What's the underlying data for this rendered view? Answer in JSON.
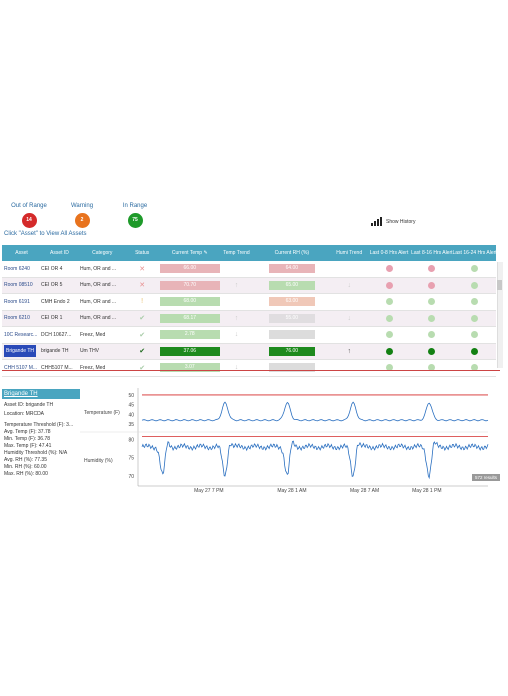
{
  "summary": {
    "out_of_range": {
      "label": "Out of Range",
      "count": "14",
      "color": "#d42a2a"
    },
    "warning": {
      "label": "Warning",
      "count": "2",
      "color": "#e8731e"
    },
    "in_range": {
      "label": "In Range",
      "count": "75",
      "color": "#1e9a2a"
    }
  },
  "hint": "Click \"Asset\" to View All Assets",
  "show_history": "Show History",
  "columns": [
    "Asset",
    "Asset ID",
    "Category",
    "Status",
    "Current Temp",
    "Temp Trend",
    "Current RH (%)",
    "Humi Trend",
    "Last 0-8 Hrs Alert",
    "Last 8-16 Hrs Alert",
    "Last 16-24 Hrs Alert"
  ],
  "rows": [
    {
      "asset": "Room 6240",
      "id": "CEI OR 4",
      "category": "Hum, OR and ...",
      "status": "x",
      "temp": "66.00",
      "temp_color": "#e8b4b8",
      "temp_trend": "",
      "rh": "64.00",
      "rh_color": "#e8b4b8",
      "humi_trend": "",
      "alerts": [
        "#e8a0b0",
        "#e8a0b0",
        "#b8dcb0"
      ]
    },
    {
      "asset": "Room 08510",
      "id": "CEI OR 5",
      "category": "Hum, OR and ...",
      "status": "x",
      "temp": "70.70",
      "temp_color": "#e8b4b8",
      "temp_trend": "up",
      "rh": "65.00",
      "rh_color": "#b8dcb0",
      "humi_trend": "down",
      "alerts": [
        "#e8a0b0",
        "#e8a0b0",
        "#b8dcb0"
      ]
    },
    {
      "asset": "Room 6191",
      "id": "CMH Endo 2",
      "category": "Hum, OR and ...",
      "status": "!",
      "temp": "68.00",
      "temp_color": "#b8dcb0",
      "temp_trend": "",
      "rh": "63.00",
      "rh_color": "#f0c8b8",
      "humi_trend": "",
      "alerts": [
        "#b8dcb0",
        "#b8dcb0",
        "#b8dcb0"
      ]
    },
    {
      "asset": "Room 6210",
      "id": "CEI OR 1",
      "category": "Hum, OR and ...",
      "status": "check",
      "temp": "68.17",
      "temp_color": "#b8dcb0",
      "temp_trend": "up",
      "rh": "55.00",
      "rh_color": "#e0dde0",
      "humi_trend": "down",
      "alerts": [
        "#b8dcb0",
        "#b8dcb0",
        "#b8dcb0"
      ]
    },
    {
      "asset": "10C Researc...",
      "id": "DCH 10627...",
      "category": "Freez, Med",
      "status": "check",
      "temp": "2.78",
      "temp_color": "#b8dcb0",
      "temp_trend": "down",
      "rh": "",
      "rh_color": "#dcdcdc",
      "humi_trend": "",
      "alerts": [
        "#b8dcb0",
        "#b8dcb0",
        "#b8dcb0"
      ]
    },
    {
      "asset": "Brigande TH",
      "id": "brigande TH",
      "category": "Um THV",
      "status": "check",
      "temp": "37.06",
      "temp_color": "#1e8a1e",
      "temp_trend": "",
      "rh": "76.00",
      "rh_color": "#1e8a1e",
      "humi_trend": "up",
      "alerts": [
        "#138013",
        "#138013",
        "#138013"
      ]
    },
    {
      "asset": "CHH 5107 M...",
      "id": "CHH5107 M...",
      "category": "Freez, Med",
      "status": "check",
      "temp": "3.07",
      "temp_color": "#b8dcb0",
      "temp_trend": "down",
      "rh": "",
      "rh_color": "#dcdcdc",
      "humi_trend": "",
      "alerts": [
        "#b8dcb0",
        "#b8dcb0",
        "#b8dcb0"
      ]
    }
  ],
  "detail": {
    "title": "Brigande TH",
    "lines": [
      "Asset ID: brigande TH",
      "Location: MRCDA",
      "Temperature Threshold (F): 3...",
      "Avg. Temp (F): 37.78",
      "Min. Temp (F): 36.78",
      "Max. Temp (F): 47.41",
      "Humidity Threshold (%): N/A",
      "Avg. RH (%): 77.35",
      "Min. RH (%): 60.00",
      "Max. RH (%): 80.00"
    ]
  },
  "chart_data": {
    "type": "line",
    "x_ticks": [
      "May 27 7 PM",
      "May 28 1 AM",
      "May 28 7 AM",
      "May 28 1 PM"
    ],
    "temperature": {
      "label": "Temperature (F)",
      "y_ticks": [
        "50",
        "45",
        "40",
        "35"
      ],
      "ylim": [
        33,
        51
      ],
      "threshold": 50,
      "baseline": 37,
      "peaks": [
        0.24,
        0.42,
        0.61,
        0.83
      ],
      "peak_value": 46,
      "color": "#2a6fc0",
      "threshold_color": "#d42a2a"
    },
    "humidity": {
      "label": "Humidity (%)",
      "y_ticks": [
        "80",
        "75",
        "70"
      ],
      "ylim": [
        68,
        81
      ],
      "threshold": 80,
      "baseline": 78,
      "dips": [
        0.06,
        0.24,
        0.42,
        0.61,
        0.83
      ],
      "dip_value": 70,
      "color": "#2a6fc0",
      "threshold_color": "#d42a2a"
    },
    "badge": "572 results"
  }
}
